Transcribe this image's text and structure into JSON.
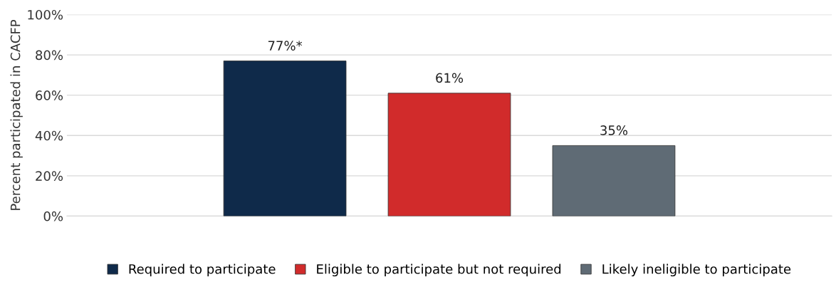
{
  "chart_data": {
    "type": "bar",
    "ylabel": "Percent participated in CACFP",
    "categories": [
      null
    ],
    "series": [
      {
        "name": "Required to participate",
        "color": "#0f2a4a",
        "values": [
          77
        ],
        "value_labels": [
          "77%*"
        ]
      },
      {
        "name": "Eligible to participate but not required",
        "color": "#d12b2b",
        "values": [
          61
        ],
        "value_labels": [
          "61%"
        ]
      },
      {
        "name": "Likely ineligible to participate",
        "color": "#5f6b75",
        "values": [
          35
        ],
        "value_labels": [
          "35%"
        ]
      }
    ],
    "ylim": [
      0,
      100
    ],
    "yticks": [
      {
        "value": 0,
        "label": "0%"
      },
      {
        "value": 20,
        "label": "20%"
      },
      {
        "value": 40,
        "label": "40%"
      },
      {
        "value": 60,
        "label": "60%"
      },
      {
        "value": 80,
        "label": "80%"
      },
      {
        "value": 100,
        "label": "100%"
      }
    ],
    "grid": "y",
    "legend": "bottom"
  }
}
